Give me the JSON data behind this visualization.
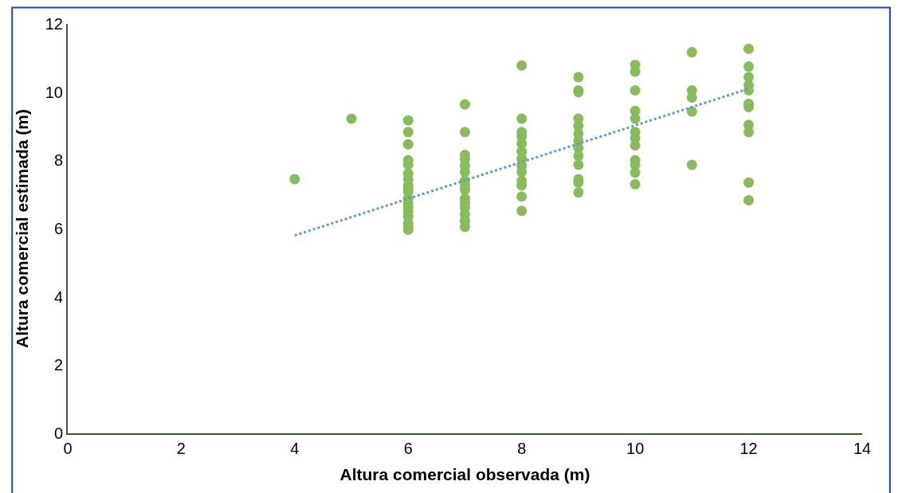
{
  "chart_data": {
    "type": "scatter",
    "xlabel": "Altura comercial observada (m)",
    "ylabel": "Altura comercial estimada (m)",
    "xlim": [
      0,
      14
    ],
    "xticks": [
      0,
      2,
      4,
      6,
      8,
      10,
      12,
      14
    ],
    "ylim": [
      0,
      12
    ],
    "yticks": [
      0,
      2,
      4,
      6,
      8,
      10,
      12
    ],
    "marker": "circle",
    "series": [
      {
        "color": "#88bb5b",
        "x": [
          4,
          5,
          6,
          6,
          6,
          6,
          6,
          6,
          6,
          6,
          6,
          6,
          6,
          6,
          6,
          6,
          6,
          6,
          6,
          6,
          7,
          7,
          7,
          7,
          7,
          7,
          7,
          7,
          7,
          7,
          7,
          7,
          7,
          7,
          7,
          8,
          8,
          8,
          8,
          8,
          8,
          8,
          8,
          8,
          8,
          8,
          8,
          8,
          9,
          9,
          9,
          9,
          9,
          9,
          9,
          9,
          9,
          9,
          9,
          9,
          9,
          10,
          10,
          10,
          10,
          10,
          10,
          10,
          10,
          10,
          10,
          10,
          10,
          11,
          11,
          11,
          11,
          11,
          12,
          12,
          12,
          12,
          12,
          12,
          12,
          12,
          12,
          12,
          12
        ],
        "values": [
          7.45,
          9.22,
          9.17,
          8.83,
          8.47,
          8.0,
          7.87,
          7.61,
          7.45,
          7.27,
          7.2,
          7.09,
          6.88,
          6.75,
          6.62,
          6.5,
          6.36,
          6.16,
          6.05,
          5.97,
          9.64,
          8.83,
          8.16,
          8.03,
          7.84,
          7.66,
          7.4,
          7.14,
          6.88,
          6.75,
          6.62,
          6.42,
          6.23,
          6.05,
          7.27,
          10.78,
          9.22,
          8.83,
          8.7,
          8.49,
          8.26,
          8.05,
          7.84,
          7.66,
          7.4,
          7.27,
          6.94,
          6.52,
          10.44,
          10.05,
          10.0,
          9.22,
          9.01,
          8.78,
          8.57,
          8.36,
          8.13,
          7.87,
          7.45,
          7.35,
          7.06,
          10.8,
          10.6,
          10.05,
          9.45,
          9.22,
          8.83,
          8.65,
          8.44,
          8.0,
          7.87,
          7.64,
          7.3,
          11.17,
          10.05,
          9.84,
          9.43,
          7.87,
          11.27,
          10.75,
          10.44,
          10.2,
          10.05,
          9.66,
          9.56,
          9.04,
          8.83,
          7.35,
          6.83
        ]
      },
      {
        "type": "line",
        "color": "#5b9bd5",
        "line_style": "dotted",
        "marker": "none",
        "x": [
          4,
          12
        ],
        "values": [
          5.8,
          10.1
        ]
      }
    ]
  }
}
